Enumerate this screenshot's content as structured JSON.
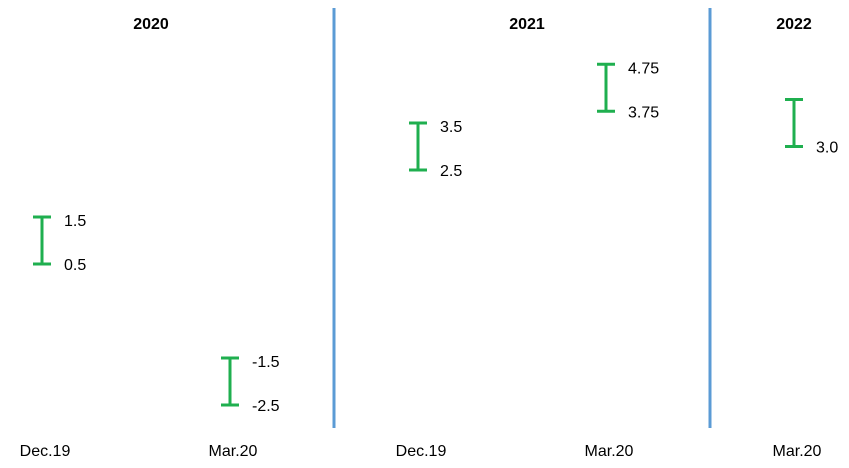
{
  "chart_data": {
    "type": "range",
    "color": "#1faf4f",
    "separator_color": "#5b9bd5",
    "ylim": [
      -3,
      5.5
    ],
    "groups": [
      {
        "name": "2020",
        "categories": [
          "Dec.19",
          "Mar.20"
        ],
        "low": [
          0.5,
          -2.5
        ],
        "high": [
          1.5,
          -1.5
        ]
      },
      {
        "name": "2021",
        "categories": [
          "Dec.19",
          "Mar.20"
        ],
        "low": [
          2.5,
          3.75
        ],
        "high": [
          3.5,
          4.75
        ]
      },
      {
        "name": "2022",
        "categories": [
          "Mar.20"
        ],
        "low": [
          3.0
        ],
        "high": [
          4.0
        ],
        "low_labels": [
          "3.0"
        ],
        "high_labels": [
          null
        ]
      }
    ]
  }
}
